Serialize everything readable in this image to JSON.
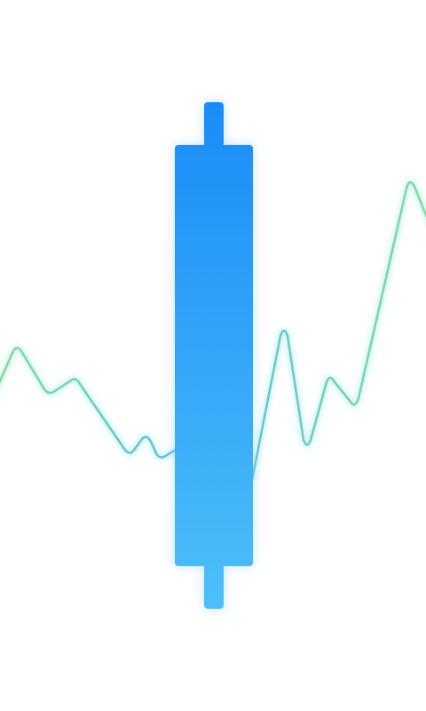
{
  "splash": {
    "logo": {
      "kind": "candlestick-with-price-line",
      "colors": {
        "candle_top": "#1a8cf8",
        "candle_bottom": "#4dbff8",
        "line_left": "#7ee08a",
        "line_mid": "#52c0e6",
        "line_right": "#7ee08a",
        "glow": "#bfe7ff"
      }
    }
  }
}
